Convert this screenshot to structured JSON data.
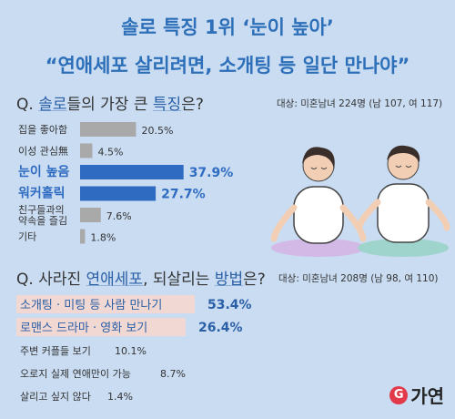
{
  "header": {
    "title": "솔로 특징 1위 ‘눈이 높아’",
    "subtitle": "“연애세포 살리려면, 소개팅 등 일단 만나야”"
  },
  "q1": {
    "prefix": "Q. ",
    "highlight1": "솔로",
    "middle": "들의 가장 큰 ",
    "highlight2": "특징",
    "suffix": "은?",
    "note": "대상: 미혼남녀 224명 (남 107, 여 117)"
  },
  "q2": {
    "prefix": "Q. 사라진 ",
    "highlight1": "연애세포",
    "middle": ", 되살리는 ",
    "highlight2": "방법",
    "suffix": "은?",
    "note": "대상: 미혼남녀 208명 (남 98, 여 110)"
  },
  "logo": {
    "mark": "G",
    "text": "가연"
  },
  "chart_data": [
    {
      "type": "bar",
      "orientation": "horizontal",
      "categories": [
        "집을 좋아함",
        "이성 관심無",
        "눈이 높음",
        "워커홀릭",
        "친구들과의 약속을 즐김",
        "기타"
      ],
      "values": [
        20.5,
        4.5,
        37.9,
        27.7,
        7.6,
        1.8
      ],
      "labels": [
        "20.5%",
        "4.5%",
        "37.9%",
        "27.7%",
        "7.6%",
        "1.8%"
      ],
      "highlight": [
        false,
        false,
        true,
        true,
        false,
        false
      ],
      "colors": {
        "base": "#a9a9a9",
        "highlight": "#2f6cc1"
      }
    },
    {
      "type": "bar",
      "orientation": "horizontal",
      "categories": [
        "소개팅 · 미팅 등 사람 만나기",
        "로맨스 드라마 · 영화 보기",
        "주변 커플들 보기",
        "오로지 실제 연애만이 가능",
        "살리고 싶지 않다"
      ],
      "values": [
        53.4,
        26.4,
        10.1,
        8.7,
        1.4
      ],
      "labels": [
        "53.4%",
        "26.4%",
        "10.1%",
        "8.7%",
        "1.4%"
      ],
      "highlight": [
        true,
        true,
        false,
        false,
        false
      ],
      "colors": {
        "highlight_bg": "#f1d8d3",
        "highlight_text": "#2a5fa6"
      }
    }
  ]
}
